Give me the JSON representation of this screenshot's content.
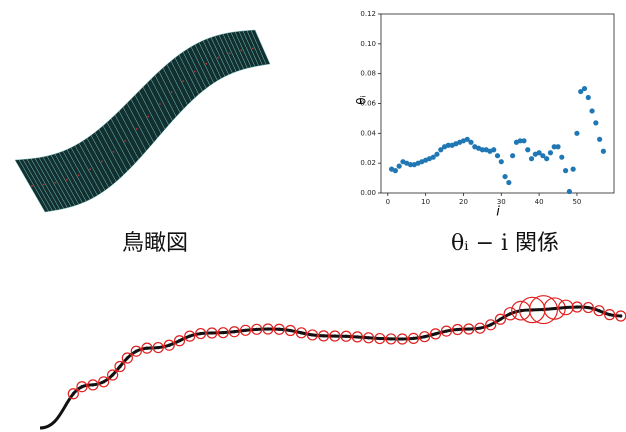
{
  "chart_data": {
    "type": "scatter",
    "xlabel": "i",
    "ylabel": "θᵢ",
    "color": "#1f77b4",
    "x": [
      1,
      2,
      3,
      4,
      5,
      6,
      7,
      8,
      9,
      10,
      11,
      12,
      13,
      14,
      15,
      16,
      17,
      18,
      19,
      20,
      21,
      22,
      23,
      24,
      25,
      26,
      27,
      28,
      29,
      30,
      31,
      32,
      33,
      34,
      35,
      36,
      37,
      38,
      39,
      40,
      41,
      42,
      43,
      44,
      45,
      46,
      47,
      48,
      49,
      50,
      51,
      52,
      53,
      54,
      55,
      56,
      57
    ],
    "values": [
      0.016,
      0.015,
      0.018,
      0.021,
      0.02,
      0.019,
      0.019,
      0.02,
      0.021,
      0.022,
      0.023,
      0.024,
      0.026,
      0.029,
      0.031,
      0.032,
      0.032,
      0.033,
      0.034,
      0.035,
      0.036,
      0.034,
      0.031,
      0.03,
      0.029,
      0.029,
      0.028,
      0.029,
      0.025,
      0.021,
      0.011,
      0.007,
      0.025,
      0.034,
      0.035,
      0.035,
      0.029,
      0.023,
      0.026,
      0.027,
      0.025,
      0.023,
      0.027,
      0.031,
      0.031,
      0.024,
      0.015,
      0.001,
      0.016,
      0.04,
      0.068,
      0.07,
      0.064,
      0.055,
      0.047,
      0.036,
      0.028
    ],
    "xlim": [
      -1.8,
      59.8
    ],
    "xticks": [
      0,
      10,
      20,
      30,
      40,
      50
    ],
    "ylim": [
      0,
      0.12
    ],
    "yticks": [
      {
        "value": 0,
        "label": "0.00"
      },
      {
        "value": 0.02,
        "label": "0.02"
      },
      {
        "value": 0.04,
        "label": "0.04"
      },
      {
        "value": 0.06,
        "label": "0.06"
      },
      {
        "value": 0.08,
        "label": "0.08"
      },
      {
        "value": 0.1,
        "label": "0.10"
      },
      {
        "value": 0.12,
        "label": "0.12"
      }
    ]
  },
  "captions": [
    "鳥瞰図",
    "θᵢ − i 関係"
  ]
}
